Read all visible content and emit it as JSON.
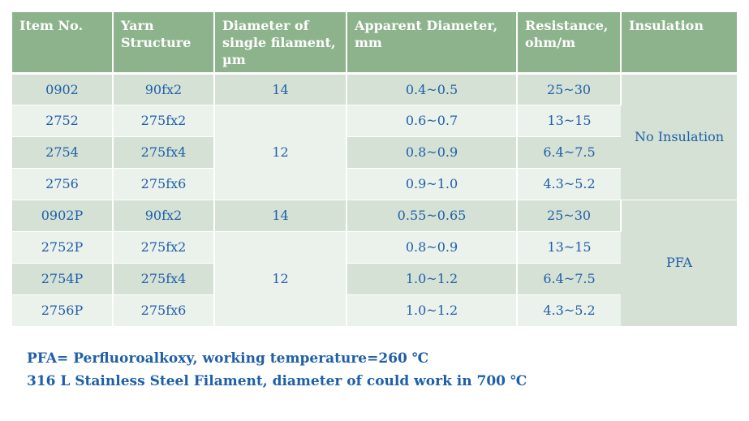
{
  "table": {
    "headers": [
      "Item No.",
      "Yarn Structure",
      "Diameter of single filament, µm",
      "Apparent Diameter, mm",
      "Resistance, ohm/m",
      "Insulation"
    ],
    "rows": [
      {
        "item": "0902",
        "yarn": "90fx2",
        "apparent": "0.4~0.5",
        "resistance": "25~30"
      },
      {
        "item": "2752",
        "yarn": "275fx2",
        "apparent": "0.6~0.7",
        "resistance": "13~15"
      },
      {
        "item": "2754",
        "yarn": "275fx4",
        "apparent": "0.8~0.9",
        "resistance": "6.4~7.5"
      },
      {
        "item": "2756",
        "yarn": "275fx6",
        "apparent": "0.9~1.0",
        "resistance": "4.3~5.2"
      },
      {
        "item": "0902P",
        "yarn": "90fx2",
        "apparent": "0.55~0.65",
        "resistance": "25~30"
      },
      {
        "item": "2752P",
        "yarn": "275fx2",
        "apparent": "0.8~0.9",
        "resistance": "13~15"
      },
      {
        "item": "2754P",
        "yarn": "275fx4",
        "apparent": "1.0~1.2",
        "resistance": "6.4~7.5"
      },
      {
        "item": "2756P",
        "yarn": "275fx6",
        "apparent": "1.0~1.2",
        "resistance": "4.3~5.2"
      }
    ],
    "diameter_groups": [
      "14",
      "12",
      "14",
      "12"
    ],
    "insulation_groups": [
      "No Insulation",
      "PFA"
    ]
  },
  "notes": [
    "PFA= Perfluoroalkoxy, working temperature=260 ℃",
    "316 L Stainless Steel Filament, diameter of could work in 700 ℃"
  ],
  "colors": {
    "header_bg": "#8db38d",
    "row_dark": "#d4e1d4",
    "row_light": "#ebf1eb",
    "text": "#1f5fa8"
  }
}
